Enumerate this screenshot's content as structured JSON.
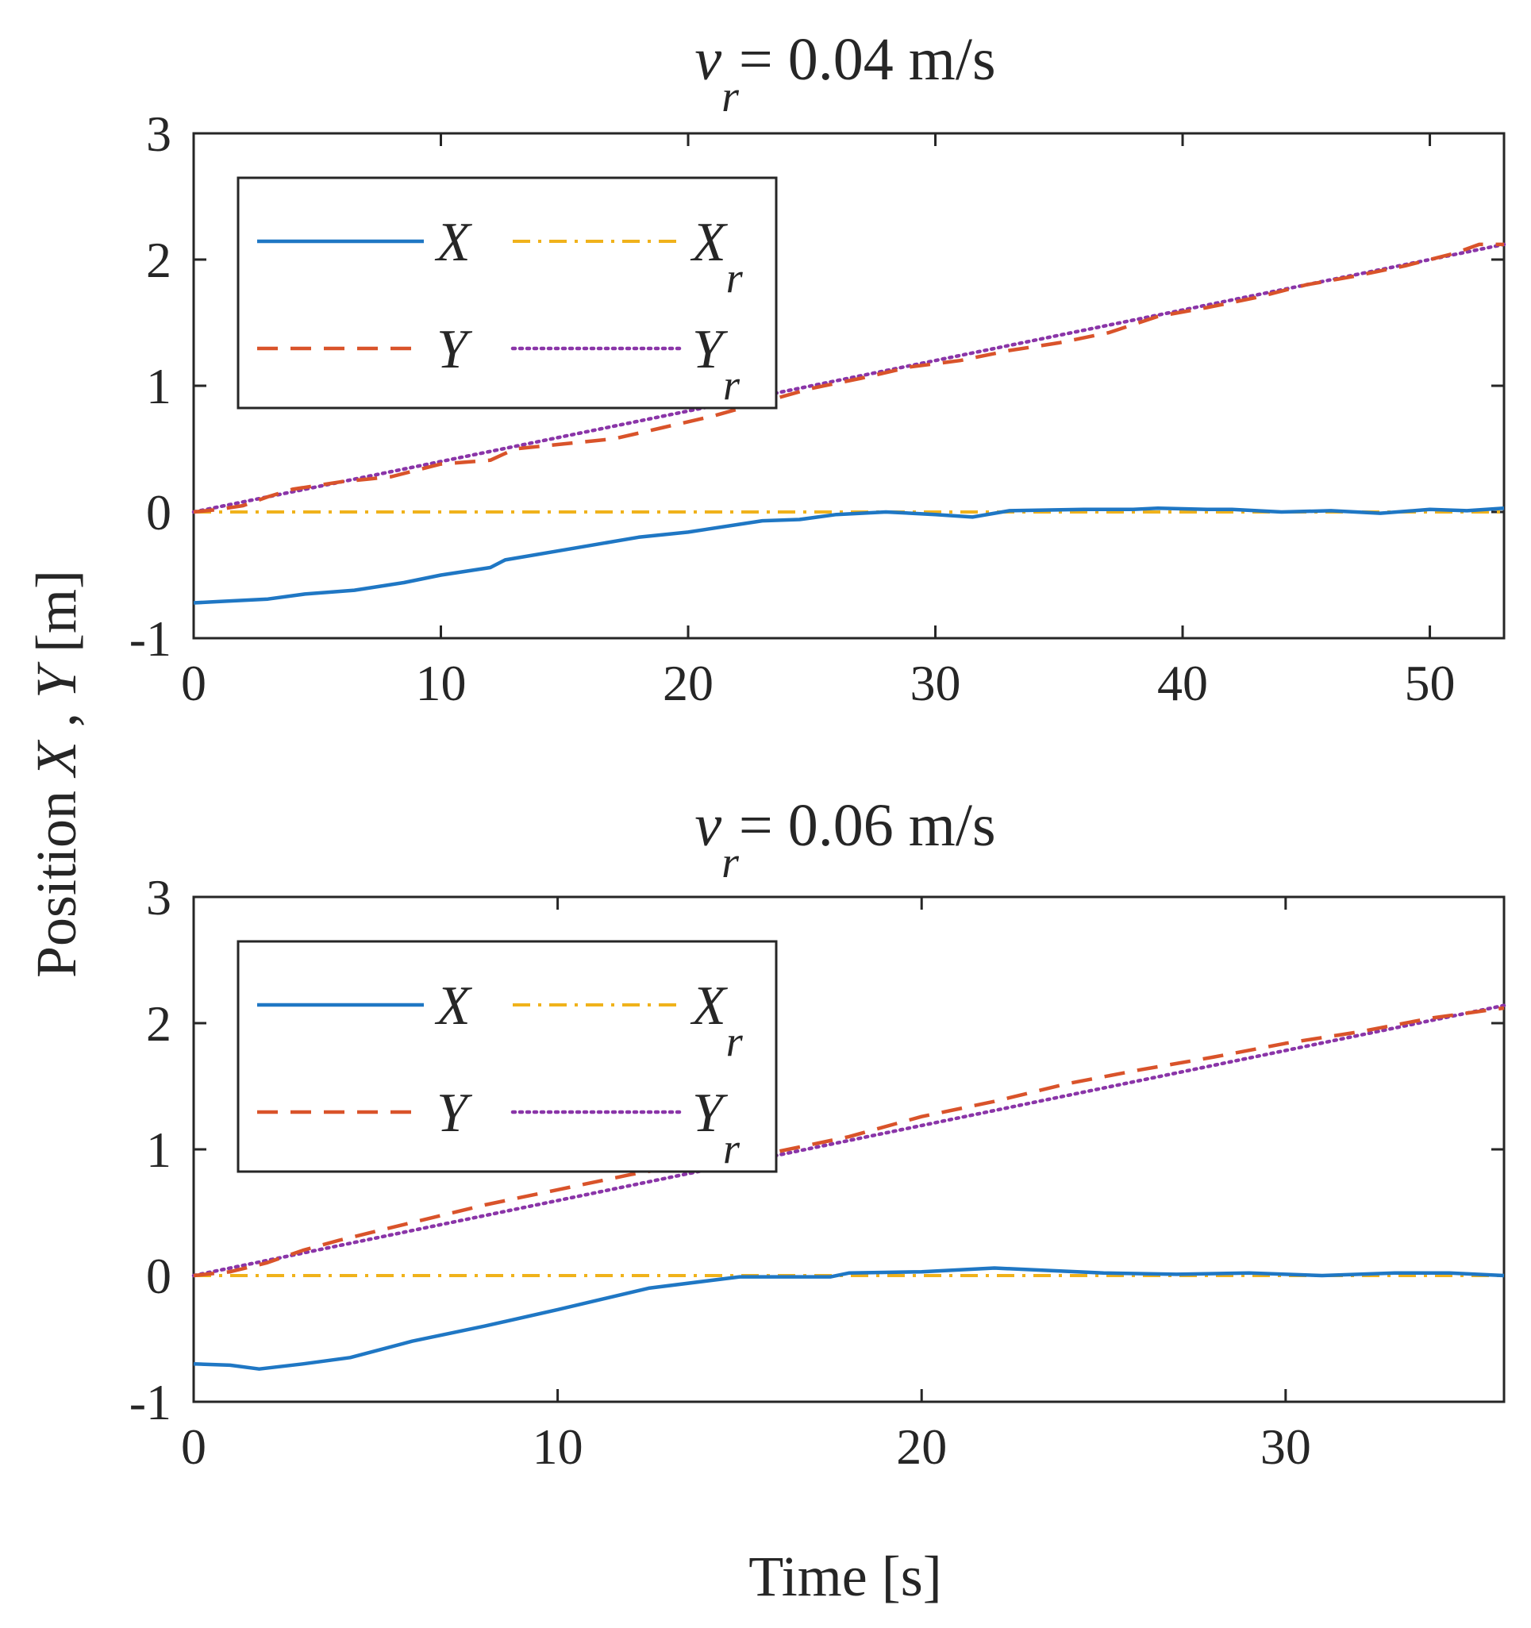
{
  "figure": {
    "ylabel": {
      "prefix": "Position ",
      "x_var": "X",
      "sep": " , ",
      "y_var": "Y",
      "unit": " [m]"
    },
    "xlabel": "Time [s]"
  },
  "colors": {
    "X": "#1f77c4",
    "Y": "#d9532a",
    "Xr": "#f0b21b",
    "Yr": "#8a35a8"
  },
  "chart_data": [
    {
      "type": "line",
      "title": {
        "var": "v",
        "sub": "r",
        "text": "= 0.04 m/s"
      },
      "xlim": [
        0,
        53
      ],
      "ylim": [
        -1,
        3
      ],
      "xticks": [
        0,
        10,
        20,
        30,
        40,
        50
      ],
      "yticks": [
        -1,
        0,
        1,
        2,
        3
      ],
      "legend": [
        {
          "key": "X",
          "label": "X",
          "sub": ""
        },
        {
          "key": "Xr",
          "label": "X",
          "sub": "r"
        },
        {
          "key": "Y",
          "label": "Y",
          "sub": ""
        },
        {
          "key": "Yr",
          "label": "Y",
          "sub": "r"
        }
      ],
      "series": [
        {
          "key": "X",
          "name": "X",
          "style": "solid",
          "x": [
            0,
            1,
            3,
            4.5,
            6.5,
            8.5,
            10,
            12,
            12.6,
            15,
            18,
            20,
            23,
            24.5,
            26,
            28,
            30,
            31.5,
            33,
            36,
            38,
            39,
            41,
            42,
            44,
            46,
            48,
            50,
            51.5,
            53
          ],
          "y": [
            -0.72,
            -0.71,
            -0.69,
            -0.65,
            -0.62,
            -0.56,
            -0.5,
            -0.44,
            -0.38,
            -0.3,
            -0.2,
            -0.16,
            -0.07,
            -0.06,
            -0.02,
            0.0,
            -0.02,
            -0.04,
            0.01,
            0.02,
            0.02,
            0.03,
            0.02,
            0.02,
            0.0,
            0.01,
            -0.01,
            0.02,
            0.01,
            0.03
          ]
        },
        {
          "key": "Y",
          "name": "Y",
          "style": "dashed",
          "x": [
            0,
            1,
            2,
            3,
            4,
            6,
            7,
            8,
            9,
            10,
            12,
            13,
            14,
            15,
            17,
            19,
            21,
            23,
            25,
            27,
            29,
            31,
            33,
            35,
            37,
            39,
            41,
            43,
            45,
            47,
            49,
            51,
            52,
            53
          ],
          "y": [
            0.0,
            0.02,
            0.05,
            0.12,
            0.18,
            0.24,
            0.26,
            0.28,
            0.33,
            0.38,
            0.41,
            0.5,
            0.52,
            0.54,
            0.58,
            0.67,
            0.76,
            0.87,
            0.98,
            1.06,
            1.15,
            1.2,
            1.28,
            1.34,
            1.42,
            1.55,
            1.62,
            1.7,
            1.8,
            1.87,
            1.95,
            2.05,
            2.12,
            2.12
          ]
        },
        {
          "key": "Xr",
          "name": "Xr",
          "style": "dashdot",
          "x": [
            0,
            53
          ],
          "y": [
            0,
            0
          ]
        },
        {
          "key": "Yr",
          "name": "Yr",
          "style": "dotted",
          "x": [
            0,
            53
          ],
          "y": [
            0,
            2.12
          ]
        }
      ]
    },
    {
      "type": "line",
      "title": {
        "var": "v",
        "sub": "r",
        "text": "= 0.06 m/s"
      },
      "xlim": [
        0,
        36
      ],
      "ylim": [
        -1,
        3
      ],
      "xticks": [
        0,
        10,
        20,
        30
      ],
      "yticks": [
        -1,
        0,
        1,
        2,
        3
      ],
      "legend": [
        {
          "key": "X",
          "label": "X",
          "sub": ""
        },
        {
          "key": "Xr",
          "label": "X",
          "sub": "r"
        },
        {
          "key": "Y",
          "label": "Y",
          "sub": ""
        },
        {
          "key": "Yr",
          "label": "Y",
          "sub": "r"
        }
      ],
      "series": [
        {
          "key": "X",
          "name": "X",
          "style": "solid",
          "x": [
            0,
            1,
            1.8,
            3,
            4.3,
            6,
            8,
            10,
            12.5,
            15,
            16,
            17.5,
            18,
            20,
            22,
            23.5,
            25,
            27,
            29,
            31,
            33,
            34.5,
            36
          ],
          "y": [
            -0.7,
            -0.71,
            -0.74,
            -0.7,
            -0.65,
            -0.52,
            -0.4,
            -0.27,
            -0.1,
            -0.01,
            -0.01,
            -0.01,
            0.02,
            0.03,
            0.06,
            0.04,
            0.02,
            0.01,
            0.02,
            0.0,
            0.02,
            0.02,
            0.0
          ]
        },
        {
          "key": "Y",
          "name": "Y",
          "style": "dashed",
          "x": [
            0,
            1,
            2,
            3,
            4,
            6,
            8,
            10,
            12,
            14,
            16,
            18,
            20,
            22,
            24,
            26,
            28,
            30,
            32,
            34,
            36
          ],
          "y": [
            0.0,
            0.03,
            0.1,
            0.2,
            0.28,
            0.42,
            0.56,
            0.68,
            0.8,
            0.9,
            0.98,
            1.1,
            1.26,
            1.38,
            1.52,
            1.63,
            1.73,
            1.84,
            1.93,
            2.04,
            2.12
          ]
        },
        {
          "key": "Xr",
          "name": "Xr",
          "style": "dashdot",
          "x": [
            0,
            36
          ],
          "y": [
            0,
            0
          ]
        },
        {
          "key": "Yr",
          "name": "Yr",
          "style": "dotted",
          "x": [
            0,
            36
          ],
          "y": [
            0,
            2.14
          ]
        }
      ]
    }
  ]
}
